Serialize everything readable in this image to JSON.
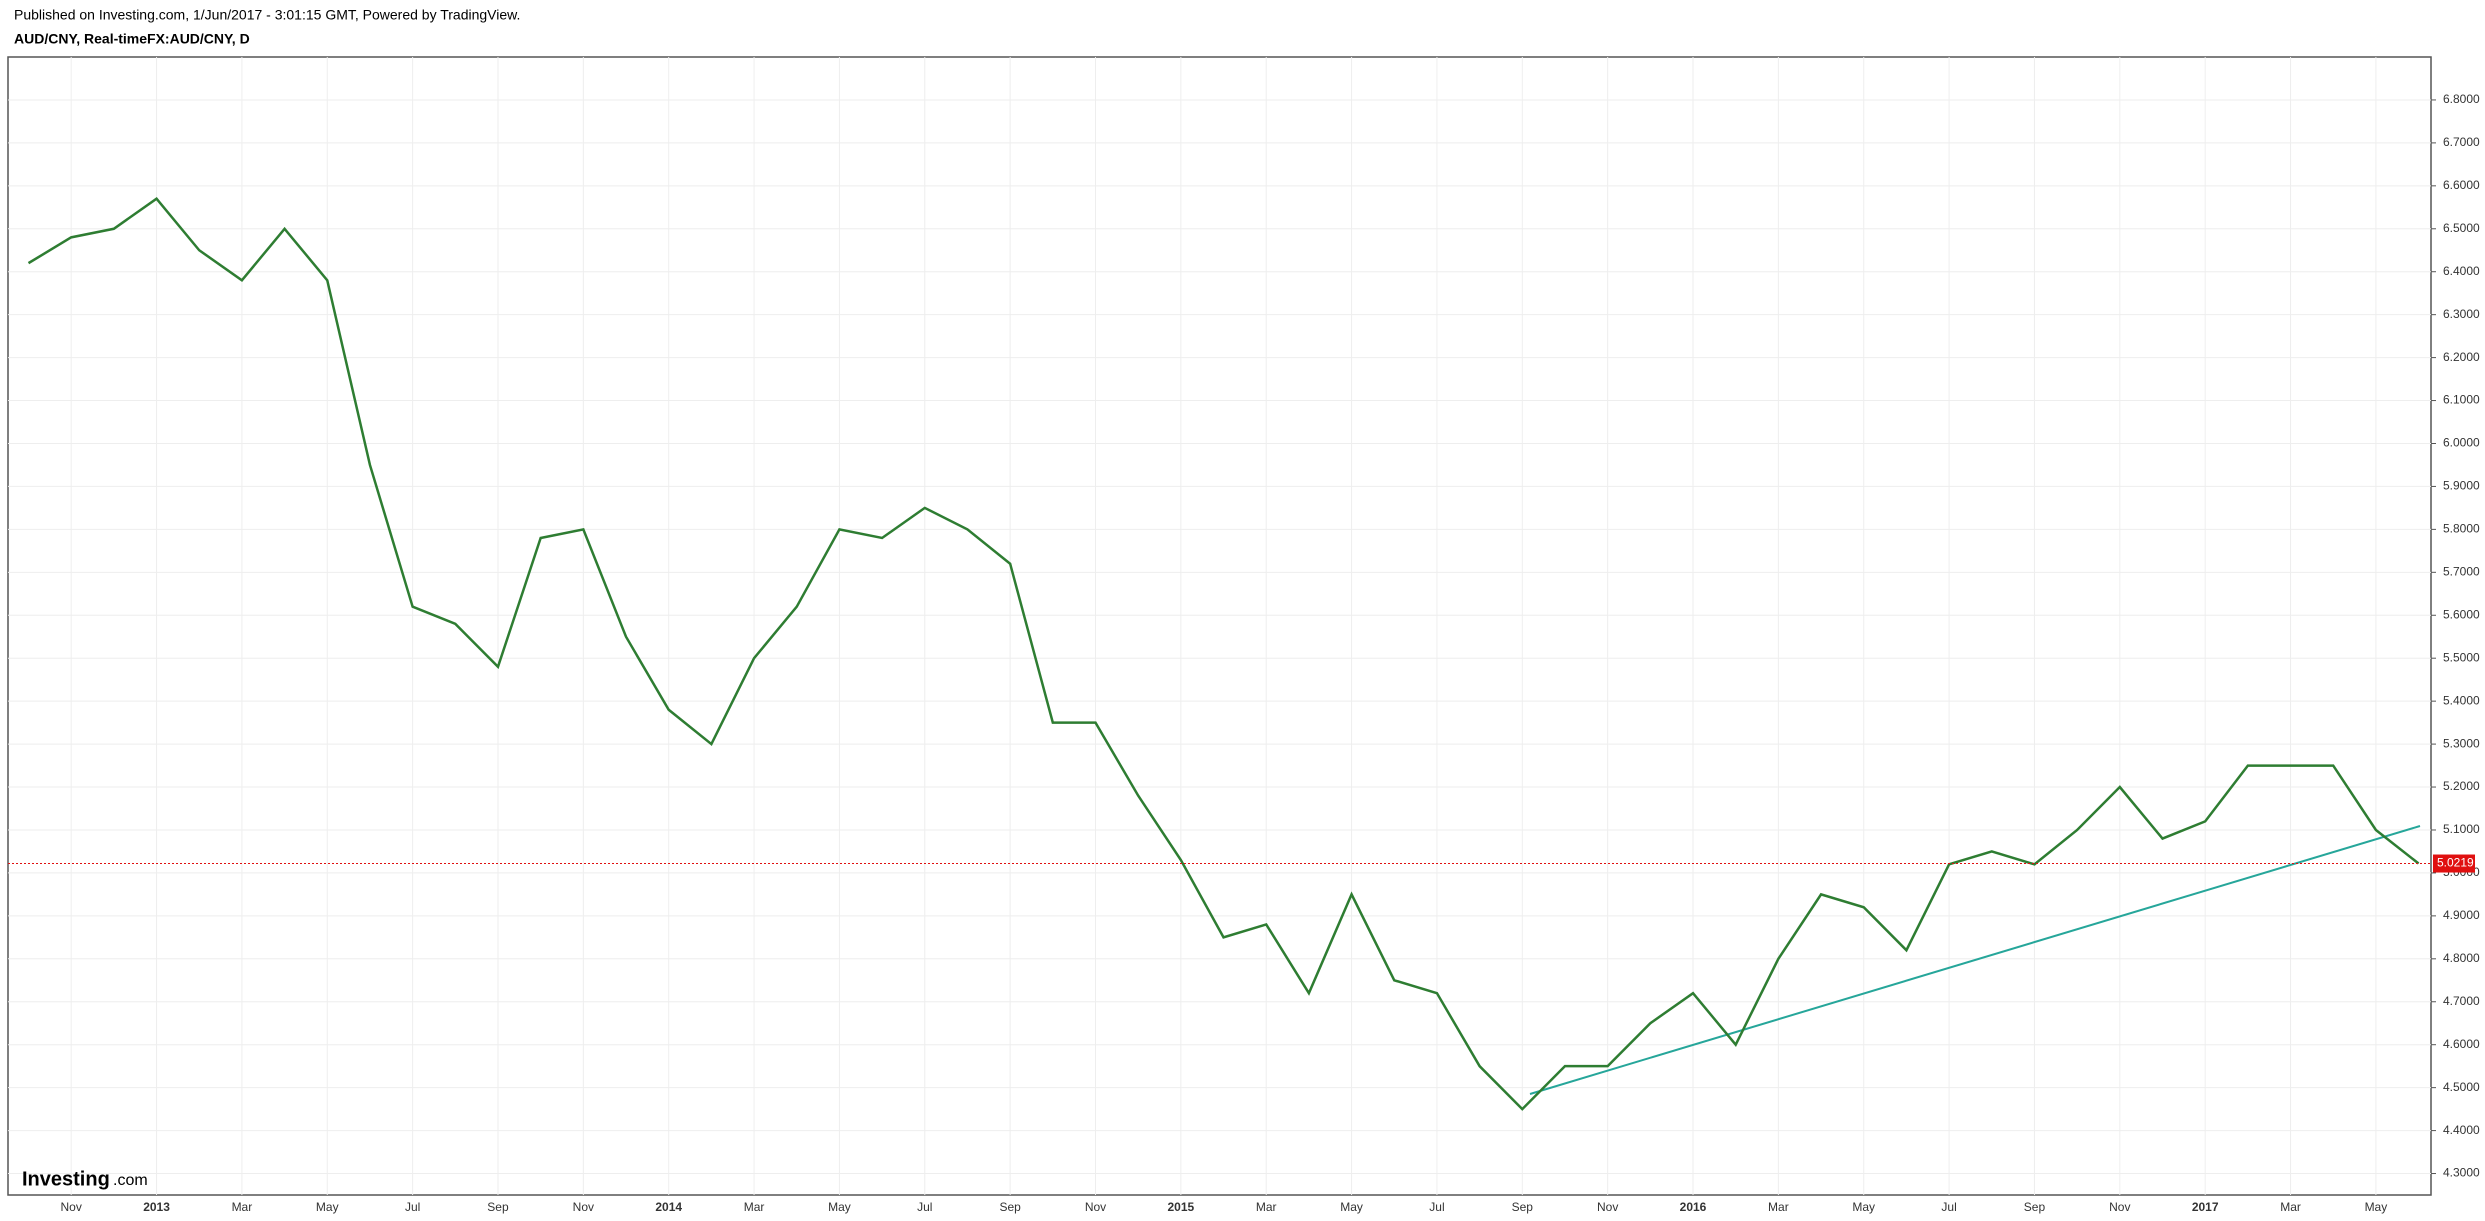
{
  "header": {
    "published": "Published on Investing.com, 1/Jun/2017 - 3:01:15 GMT, Powered by TradingView.",
    "symbol": "AUD/CNY, Real-timeFX:AUD/CNY, D"
  },
  "logo": {
    "name": "Investing",
    "suffix": ".com"
  },
  "chart_data": {
    "type": "line",
    "categories": [
      null,
      "Nov",
      null,
      "2013",
      null,
      "Mar",
      null,
      "May",
      null,
      "Jul",
      null,
      "Sep",
      null,
      "Nov",
      null,
      "2014",
      null,
      "Mar",
      null,
      "May",
      null,
      "Jul",
      null,
      "Sep",
      null,
      "Nov",
      null,
      "2015",
      null,
      "Mar",
      null,
      "May",
      null,
      "Jul",
      null,
      "Sep",
      null,
      "Nov",
      null,
      "2016",
      null,
      "Mar",
      null,
      "May",
      null,
      "Jul",
      null,
      "Sep",
      null,
      "Nov",
      null,
      "2017",
      null,
      "Mar",
      null,
      "May",
      null
    ],
    "values": [
      6.42,
      6.48,
      6.5,
      6.57,
      6.45,
      6.38,
      6.5,
      6.38,
      5.95,
      5.62,
      5.58,
      5.48,
      5.78,
      5.8,
      5.55,
      5.38,
      5.3,
      5.5,
      5.62,
      5.8,
      5.78,
      5.85,
      5.8,
      5.72,
      5.35,
      5.35,
      5.18,
      5.03,
      4.85,
      4.88,
      4.72,
      4.95,
      4.75,
      4.72,
      4.55,
      4.45,
      4.55,
      4.55,
      4.65,
      4.72,
      4.6,
      4.8,
      4.95,
      4.92,
      4.82,
      5.02,
      5.05,
      5.02,
      5.1,
      5.2,
      5.08,
      5.12,
      5.25,
      5.25,
      5.25,
      5.1,
      5.0219
    ],
    "color": "#2e7d32",
    "ylim": [
      4.25,
      6.9
    ],
    "yticks": [
      {
        "value": 4.3,
        "label": "4.3000"
      },
      {
        "value": 4.4,
        "label": "4.4000"
      },
      {
        "value": 4.5,
        "label": "4.5000"
      },
      {
        "value": 4.6,
        "label": "4.6000"
      },
      {
        "value": 4.7,
        "label": "4.7000"
      },
      {
        "value": 4.8,
        "label": "4.8000"
      },
      {
        "value": 4.9,
        "label": "4.9000"
      },
      {
        "value": 5.0,
        "label": "5.0000"
      },
      {
        "value": 5.1,
        "label": "5.1000"
      },
      {
        "value": 5.2,
        "label": "5.2000"
      },
      {
        "value": 5.3,
        "label": "5.3000"
      },
      {
        "value": 5.4,
        "label": "5.4000"
      },
      {
        "value": 5.5,
        "label": "5.5000"
      },
      {
        "value": 5.6,
        "label": "5.6000"
      },
      {
        "value": 5.7,
        "label": "5.7000"
      },
      {
        "value": 5.8,
        "label": "5.8000"
      },
      {
        "value": 5.9,
        "label": "5.9000"
      },
      {
        "value": 6.0,
        "label": "6.0000"
      },
      {
        "value": 6.1,
        "label": "6.1000"
      },
      {
        "value": 6.2,
        "label": "6.2000"
      },
      {
        "value": 6.3,
        "label": "6.3000"
      },
      {
        "value": 6.4,
        "label": "6.4000"
      },
      {
        "value": 6.5,
        "label": "6.5000"
      },
      {
        "value": 6.6,
        "label": "6.6000"
      },
      {
        "value": 6.7,
        "label": "6.7000"
      },
      {
        "value": 6.8,
        "label": "6.8000"
      }
    ],
    "grid": true,
    "last_value": 5.0219,
    "last_color": "#e01010"
  }
}
